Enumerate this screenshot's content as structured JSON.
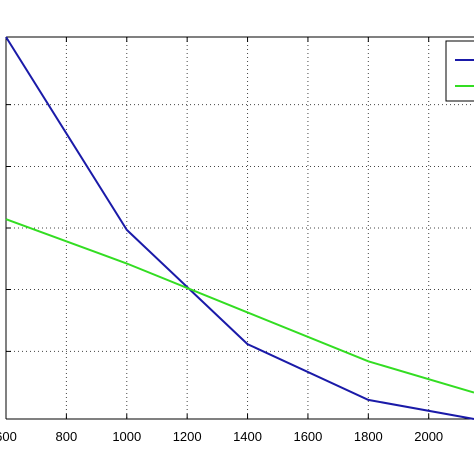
{
  "chart_data": {
    "type": "line",
    "title": "",
    "xlabel": "",
    "ylabel": "",
    "xlim": [
      600,
      2150
    ],
    "ylim": [
      0,
      1
    ],
    "grid": true,
    "legend_position": "top-right",
    "x_ticks": [
      600,
      800,
      1000,
      1200,
      1400,
      1600,
      1800,
      2000
    ],
    "x_tick_labels": [
      "600",
      "800",
      "1000",
      "1200",
      "1400",
      "1600",
      "1800",
      "2000"
    ],
    "y_ticks": [
      0.177,
      0.339,
      0.5,
      0.661,
      0.823
    ],
    "series": [
      {
        "color": "#1a1aa8",
        "x": [
          600,
          1000,
          1400,
          1800,
          2150
        ],
        "y": [
          1.0,
          0.495,
          0.196,
          0.05,
          0.0
        ]
      },
      {
        "color": "#33dd22",
        "x": [
          600,
          1000,
          1400,
          1800,
          2150
        ],
        "y": [
          0.523,
          0.407,
          0.279,
          0.151,
          0.069
        ]
      }
    ]
  }
}
